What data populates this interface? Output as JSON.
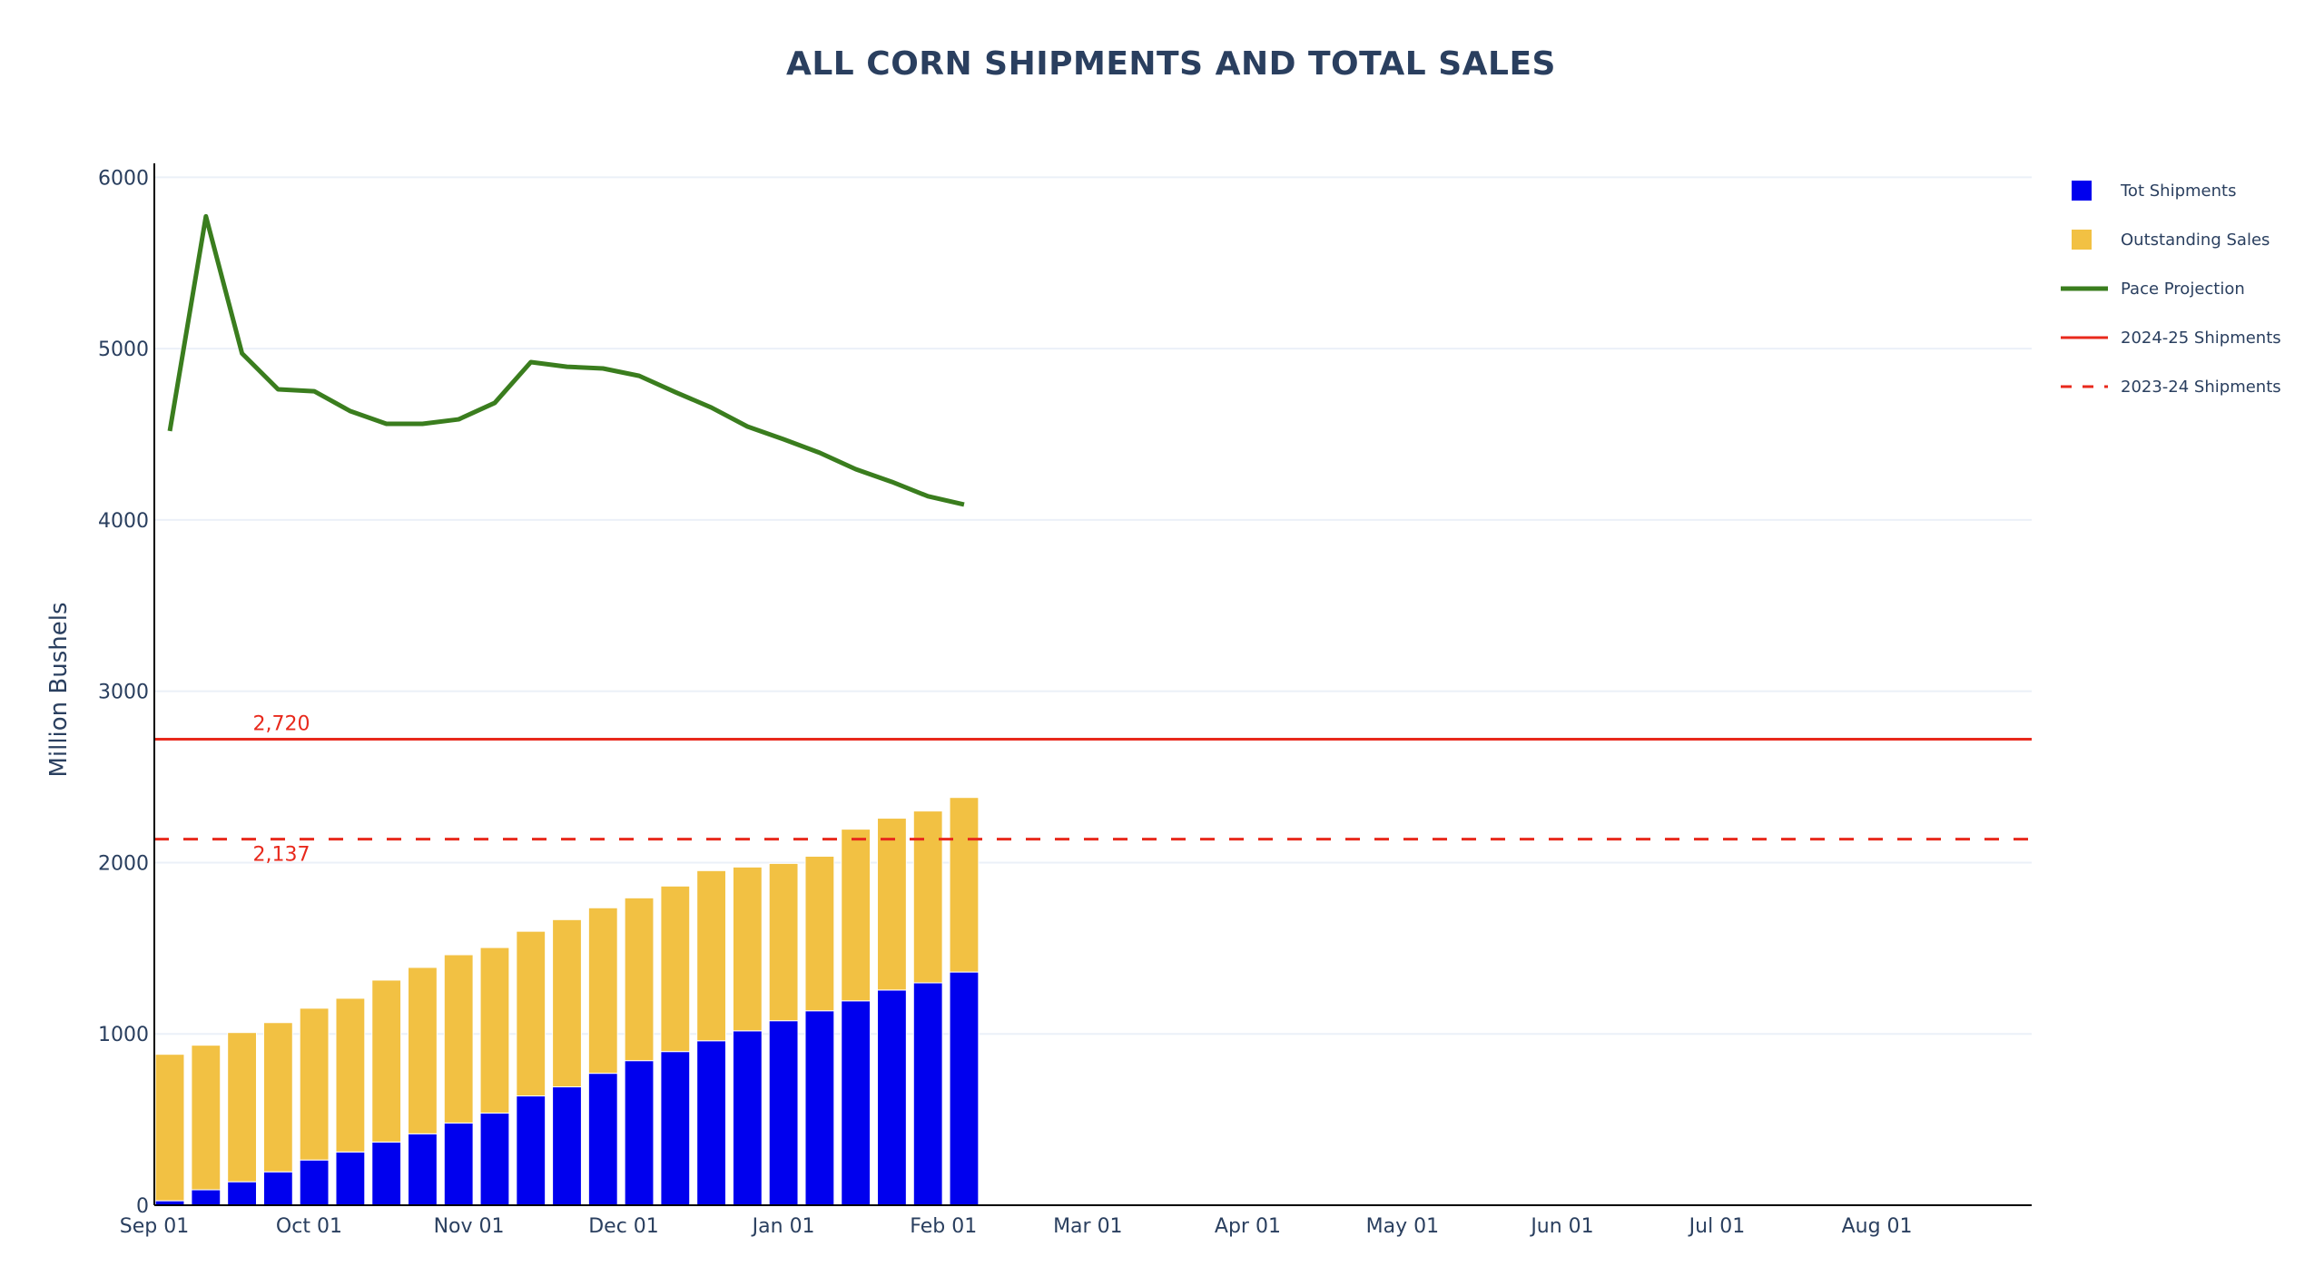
{
  "chart_data": {
    "type": "bar",
    "title": "ALL CORN SHIPMENTS AND TOTAL SALES",
    "xlabel": "",
    "ylabel": "Million Bushels",
    "ylim": [
      0,
      6060
    ],
    "yticks": [
      0,
      1000,
      2000,
      3000,
      4000,
      5000,
      6000
    ],
    "grid": true,
    "barmode": "stack",
    "x_axis": {
      "start": "2024-09-01",
      "end": "2025-08-31",
      "tick_dates": [
        "2024-09-01",
        "2024-10-01",
        "2024-11-01",
        "2024-12-01",
        "2025-01-01",
        "2025-02-01",
        "2025-03-01",
        "2025-04-01",
        "2025-05-01",
        "2025-06-01",
        "2025-07-01",
        "2025-08-01"
      ],
      "tick_labels": [
        "Sep 01",
        "Oct 01",
        "Nov 01",
        "Dec 01",
        "Jan 01",
        "Feb 01",
        "Mar 01",
        "Apr 01",
        "May 01",
        "Jun 01",
        "Jul 01",
        "Aug 01"
      ]
    },
    "x": [
      "2024-09-04",
      "2024-09-11",
      "2024-09-18",
      "2024-09-25",
      "2024-10-02",
      "2024-10-09",
      "2024-10-16",
      "2024-10-23",
      "2024-10-30",
      "2024-11-06",
      "2024-11-13",
      "2024-11-20",
      "2024-11-27",
      "2024-12-04",
      "2024-12-11",
      "2024-12-18",
      "2024-12-25",
      "2025-01-01",
      "2025-01-08",
      "2025-01-15",
      "2025-01-22",
      "2025-01-29",
      "2025-02-05"
    ],
    "series": [
      {
        "name": "Tot Shipments",
        "type": "bar",
        "color": "#0000ee",
        "values": [
          26,
          90,
          137,
          195,
          264,
          311,
          369,
          417,
          480,
          538,
          638,
          691,
          770,
          844,
          897,
          960,
          1018,
          1077,
          1135,
          1193,
          1256,
          1298,
          1361
        ]
      },
      {
        "name": "Outstanding Sales",
        "type": "bar",
        "color": "#f2c143",
        "values": [
          855,
          844,
          871,
          871,
          886,
          897,
          945,
          971,
          982,
          966,
          961,
          976,
          966,
          950,
          966,
          993,
          956,
          918,
          902,
          1002,
          1003,
          1003,
          1019
        ]
      },
      {
        "name": "Pace Projection",
        "type": "line",
        "color": "#3a7d1e",
        "values": [
          4519,
          5772,
          4972,
          4762,
          4751,
          4635,
          4561,
          4561,
          4587,
          4683,
          4921,
          4894,
          4884,
          4841,
          4746,
          4656,
          4545,
          4471,
          4392,
          4296,
          4222,
          4138,
          4090
        ]
      },
      {
        "name": "2024-25 Shipments",
        "type": "hline",
        "color": "#e8291c",
        "dash": "solid",
        "value": 2720,
        "label": "2,720"
      },
      {
        "name": "2023-24 Shipments",
        "type": "hline",
        "color": "#e8291c",
        "dash": "dash",
        "value": 2137,
        "label": "2,137"
      }
    ],
    "legend": {
      "position": "right",
      "entries": [
        {
          "name": "Tot Shipments",
          "symbol": "square",
          "color": "#0000ee"
        },
        {
          "name": "Outstanding Sales",
          "symbol": "square",
          "color": "#f2c143"
        },
        {
          "name": "Pace Projection",
          "symbol": "line",
          "color": "#3a7d1e"
        },
        {
          "name": "2024-25 Shipments",
          "symbol": "line",
          "color": "#e8291c"
        },
        {
          "name": "2023-24 Shipments",
          "symbol": "dashed-line",
          "color": "#e8291c"
        }
      ]
    }
  }
}
